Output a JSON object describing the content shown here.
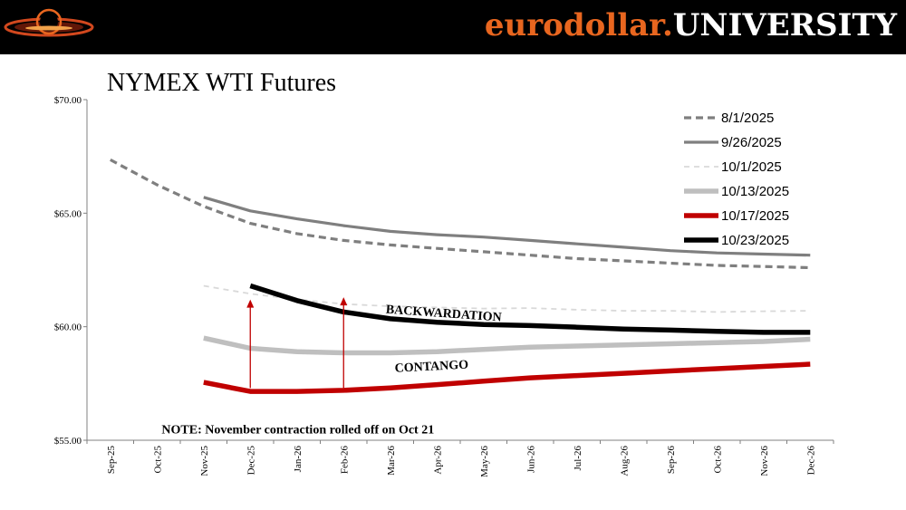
{
  "brand": {
    "part1": "eurodollar.",
    "part2": "UNIVERSITY"
  },
  "chart_data": {
    "type": "line",
    "title": "NYMEX WTI Futures",
    "categories": [
      "Sep-25",
      "Oct-25",
      "Nov-25",
      "Dec-25",
      "Jan-26",
      "Feb-26",
      "Mar-26",
      "Apr-26",
      "May-26",
      "Jun-26",
      "Jul-26",
      "Aug-26",
      "Sep-26",
      "Oct-26",
      "Nov-26",
      "Dec-26"
    ],
    "ylim": [
      55,
      70
    ],
    "yticks": [
      55,
      60,
      65,
      70
    ],
    "ytick_labels": [
      "$55.00",
      "$60.00",
      "$65.00",
      "$70.00"
    ],
    "grid": false,
    "legend_position": "top-right",
    "series": [
      {
        "name": "8/1/2025",
        "color": "#7f7f7f",
        "dash": "dashed",
        "weight": "normal",
        "values": [
          67.35,
          66.25,
          65.3,
          64.55,
          64.1,
          63.8,
          63.6,
          63.45,
          63.3,
          63.15,
          63.0,
          62.9,
          62.8,
          62.7,
          62.65,
          62.6
        ]
      },
      {
        "name": "9/26/2025",
        "color": "#7f7f7f",
        "dash": "solid",
        "weight": "normal",
        "values": [
          null,
          null,
          65.7,
          65.1,
          64.75,
          64.45,
          64.2,
          64.05,
          63.95,
          63.8,
          63.65,
          63.5,
          63.35,
          63.25,
          63.2,
          63.15
        ]
      },
      {
        "name": "10/1/2025",
        "color": "#d9d9d9",
        "dash": "dashed",
        "weight": "light",
        "values": [
          null,
          null,
          61.8,
          61.45,
          61.2,
          61.0,
          60.9,
          60.85,
          60.8,
          60.82,
          60.75,
          60.7,
          60.7,
          60.65,
          60.68,
          60.7
        ]
      },
      {
        "name": "10/13/2025",
        "color": "#bfbfbf",
        "dash": "solid",
        "weight": "bold",
        "values": [
          null,
          null,
          59.5,
          59.05,
          58.9,
          58.85,
          58.85,
          58.9,
          59.0,
          59.1,
          59.15,
          59.2,
          59.25,
          59.3,
          59.35,
          59.45
        ]
      },
      {
        "name": "10/17/2025",
        "color": "#c00000",
        "dash": "solid",
        "weight": "bold",
        "values": [
          null,
          null,
          57.55,
          57.15,
          57.15,
          57.2,
          57.3,
          57.45,
          57.6,
          57.75,
          57.85,
          57.95,
          58.05,
          58.15,
          58.25,
          58.35
        ]
      },
      {
        "name": "10/23/2025",
        "color": "#000000",
        "dash": "solid",
        "weight": "bold",
        "values": [
          null,
          null,
          null,
          61.8,
          61.15,
          60.65,
          60.35,
          60.2,
          60.1,
          60.05,
          59.98,
          59.9,
          59.85,
          59.8,
          59.75,
          59.75
        ]
      }
    ],
    "annotations": [
      {
        "text": "BACKWARDATION",
        "category_pos": 6.4,
        "y": 60.6,
        "rotate": 4
      },
      {
        "text": "CONTANGO",
        "category_pos": 6.6,
        "y": 58.0,
        "rotate": -3
      },
      {
        "text": "NOTE: November contraction rolled off on Oct 21",
        "category_pos": 1.6,
        "y": 55.3,
        "rotate": 0
      }
    ],
    "arrows": [
      {
        "category": "Dec-25",
        "y_from": 57.3,
        "y_to": 61.2,
        "color": "#c00000"
      },
      {
        "category": "Feb-26",
        "y_from": 57.3,
        "y_to": 61.3,
        "color": "#c00000"
      }
    ]
  }
}
